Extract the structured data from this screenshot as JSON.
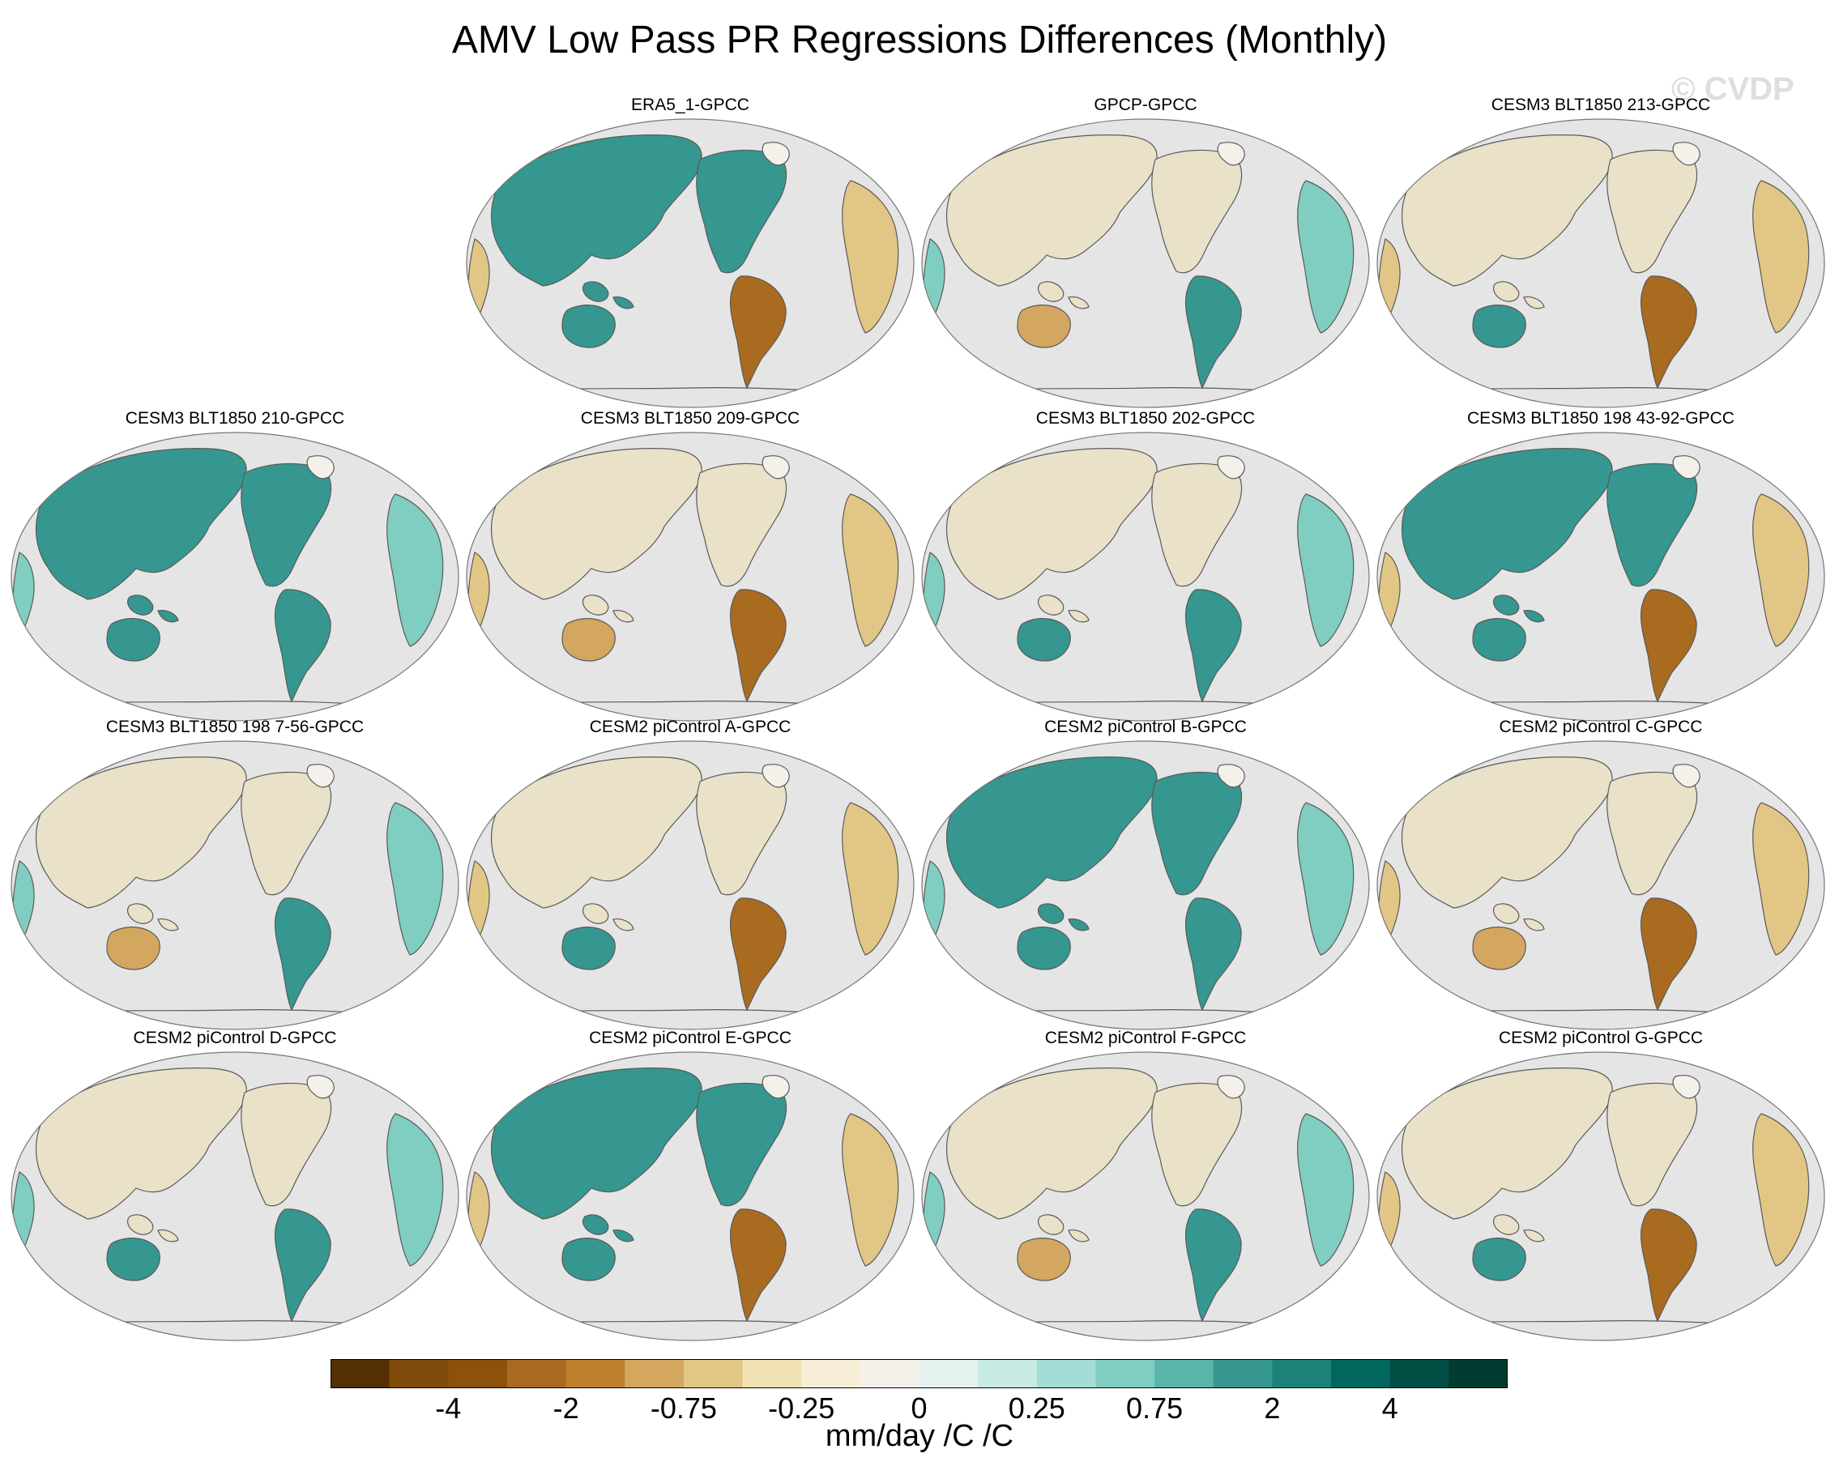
{
  "title": "AMV Low Pass PR Regressions Differences (Monthly)",
  "watermark": "© CVDP",
  "panels": [
    {
      "label": "ERA5_1-GPCC"
    },
    {
      "label": "GPCP-GPCC"
    },
    {
      "label": "CESM3 BLT1850 213-GPCC"
    },
    {
      "label": "CESM3 BLT1850 210-GPCC"
    },
    {
      "label": "CESM3 BLT1850 209-GPCC"
    },
    {
      "label": "CESM3 BLT1850 202-GPCC"
    },
    {
      "label": "CESM3 BLT1850 198 43-92-GPCC"
    },
    {
      "label": "CESM3 BLT1850 198 7-56-GPCC"
    },
    {
      "label": "CESM2 piControl A-GPCC"
    },
    {
      "label": "CESM2 piControl B-GPCC"
    },
    {
      "label": "CESM2 piControl C-GPCC"
    },
    {
      "label": "CESM2 piControl D-GPCC"
    },
    {
      "label": "CESM2 piControl E-GPCC"
    },
    {
      "label": "CESM2 piControl F-GPCC"
    },
    {
      "label": "CESM2 piControl G-GPCC"
    }
  ],
  "colorbar": {
    "colors": [
      "#543005",
      "#7f4c0b",
      "#8c510a",
      "#a86b20",
      "#bf812d",
      "#d3a75f",
      "#e2c685",
      "#f1e2b4",
      "#f6eed6",
      "#f4f1ea",
      "#e4f1ef",
      "#c7eae4",
      "#a3ddd5",
      "#80cdc1",
      "#5ab4aa",
      "#35978f",
      "#1c8278",
      "#01665e",
      "#004e44",
      "#003c30"
    ],
    "tick_labels": [
      "-4",
      "-2",
      "-0.75",
      "-0.25",
      "0",
      "0.25",
      "0.75",
      "2",
      "4"
    ],
    "label": "mm/day /C /C"
  },
  "styles": {
    "ocean": "#e5e5e5",
    "coast": "#5a5a5a",
    "brown": "#a86b20",
    "teal": "#35978f"
  }
}
